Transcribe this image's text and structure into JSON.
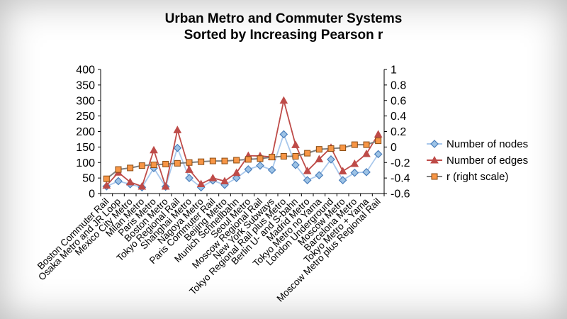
{
  "chart_data": {
    "type": "line",
    "title": [
      "Urban Metro and Commuter Systems",
      "Sorted by Increasing Pearson r"
    ],
    "categories": [
      "Boston Commuter Rail",
      "Osaka Metro and JR Loop",
      "Mexico City Metro",
      "Milan Metro",
      "Paris Metro",
      "Boston Metro",
      "Tokyo Regional Rail",
      "Shanghai Metro",
      "Nagoya Metro",
      "Paris Commuter Rail",
      "Beijing Metro",
      "Munich Schnellbahn",
      "Seoul Metro",
      "Moscow Regional Rail",
      "New York Subways",
      "Tokyo Regional Rail plus Metro",
      "Berlin U- and S-bahn",
      "Madrid Metro",
      "Tokyo Metro no Yama",
      "London Underground",
      "Moscow Metro",
      "Barcelona Metro",
      "Tokyo Metro + Yama",
      "Moscow Metro plus Regional Rail"
    ],
    "series": [
      {
        "name": "Number of nodes",
        "axis": "left",
        "color": "#4a7ebb",
        "marker": "diamond",
        "values": [
          23,
          40,
          30,
          20,
          82,
          22,
          147,
          50,
          20,
          42,
          28,
          50,
          78,
          90,
          76,
          191,
          92,
          43,
          59,
          110,
          43,
          67,
          69,
          127
        ]
      },
      {
        "name": "Number of edges",
        "axis": "left",
        "color": "#be4b48",
        "marker": "triangle",
        "values": [
          26,
          68,
          37,
          23,
          140,
          23,
          205,
          77,
          31,
          50,
          40,
          67,
          122,
          121,
          118,
          300,
          157,
          73,
          111,
          148,
          72,
          96,
          128,
          191
        ]
      },
      {
        "name": "r (right scale)",
        "axis": "right",
        "color": "#f79646",
        "marker": "square",
        "values": [
          -0.41,
          -0.29,
          -0.27,
          -0.24,
          -0.23,
          -0.22,
          -0.21,
          -0.2,
          -0.19,
          -0.18,
          -0.18,
          -0.17,
          -0.16,
          -0.15,
          -0.13,
          -0.12,
          -0.12,
          -0.08,
          -0.03,
          -0.02,
          -0.01,
          0.03,
          0.03,
          0.08
        ]
      }
    ],
    "y_left": {
      "min": 0,
      "max": 400,
      "ticks": [
        "0",
        "50",
        "100",
        "150",
        "200",
        "250",
        "300",
        "350",
        "400"
      ]
    },
    "y_right": {
      "min": -0.6,
      "max": 1,
      "ticks": [
        "-0.6",
        "-0.4",
        "-0.2",
        "0",
        "0.2",
        "0.4",
        "0.6",
        "0.8",
        "1"
      ]
    },
    "grid": false,
    "legend_position": "right"
  }
}
